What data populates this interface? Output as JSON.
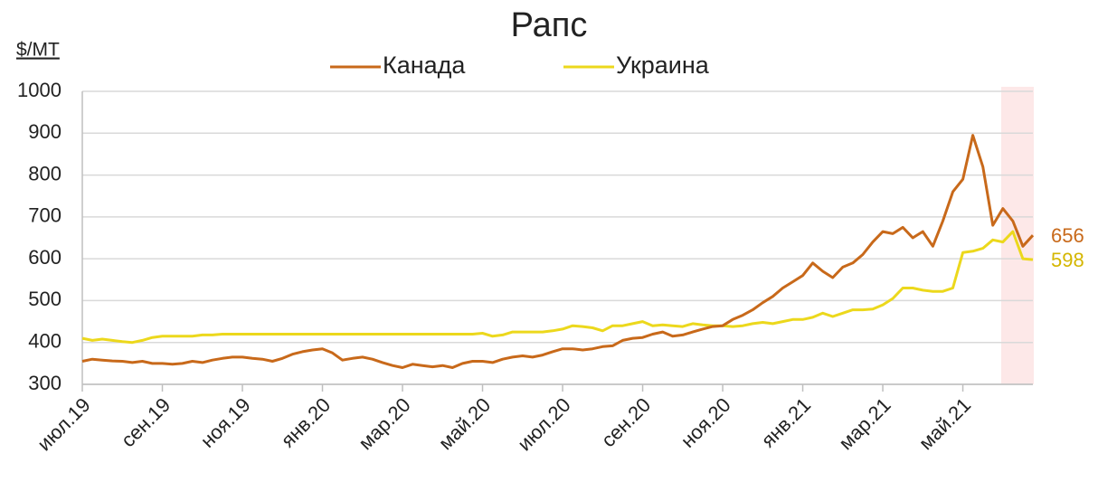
{
  "chart_data": {
    "type": "line",
    "title": "Рапс",
    "y_label": "$/МТ",
    "x": [
      "июл.19",
      null,
      null,
      null,
      null,
      null,
      null,
      null,
      "сен.19",
      null,
      null,
      null,
      null,
      null,
      null,
      null,
      "ноя.19",
      null,
      null,
      null,
      null,
      null,
      null,
      null,
      "янв.20",
      null,
      null,
      null,
      null,
      null,
      null,
      null,
      "мар.20",
      null,
      null,
      null,
      null,
      null,
      null,
      null,
      "май.20",
      null,
      null,
      null,
      null,
      null,
      null,
      null,
      "июл.20",
      null,
      null,
      null,
      null,
      null,
      null,
      null,
      "сен.20",
      null,
      null,
      null,
      null,
      null,
      null,
      null,
      "ноя.20",
      null,
      null,
      null,
      null,
      null,
      null,
      null,
      "янв.21",
      null,
      null,
      null,
      null,
      null,
      null,
      null,
      "мар.21",
      null,
      null,
      null,
      null,
      null,
      null,
      null,
      "май.21",
      null,
      null,
      null,
      null,
      null,
      null,
      null
    ],
    "series": [
      {
        "name": "Канада",
        "color": "#c8691a",
        "values": [
          355,
          360,
          358,
          356,
          355,
          352,
          355,
          350,
          350,
          348,
          350,
          355,
          352,
          358,
          362,
          365,
          365,
          362,
          360,
          355,
          362,
          372,
          378,
          382,
          385,
          375,
          358,
          362,
          365,
          360,
          352,
          345,
          340,
          348,
          345,
          342,
          345,
          340,
          350,
          355,
          355,
          352,
          360,
          365,
          368,
          365,
          370,
          378,
          385,
          385,
          382,
          385,
          390,
          392,
          405,
          410,
          412,
          420,
          425,
          415,
          418,
          425,
          432,
          438,
          440,
          455,
          465,
          478,
          495,
          510,
          530,
          545,
          560,
          590,
          570,
          555,
          580,
          590,
          610,
          640,
          665,
          660,
          675,
          650,
          665,
          630,
          690,
          760,
          790,
          895,
          820,
          680,
          720,
          690,
          630,
          656
        ]
      },
      {
        "name": "Украина",
        "color": "#ecd81c",
        "values": [
          410,
          405,
          408,
          405,
          402,
          400,
          405,
          412,
          415,
          415,
          415,
          415,
          418,
          418,
          420,
          420,
          420,
          420,
          420,
          420,
          420,
          420,
          420,
          420,
          420,
          420,
          420,
          420,
          420,
          420,
          420,
          420,
          420,
          420,
          420,
          420,
          420,
          420,
          420,
          420,
          422,
          415,
          418,
          425,
          425,
          425,
          425,
          428,
          432,
          440,
          438,
          435,
          428,
          440,
          440,
          445,
          450,
          440,
          442,
          440,
          438,
          445,
          442,
          440,
          440,
          438,
          440,
          445,
          448,
          445,
          450,
          455,
          455,
          460,
          470,
          462,
          470,
          478,
          478,
          480,
          490,
          505,
          530,
          530,
          525,
          522,
          522,
          530,
          615,
          618,
          625,
          645,
          640,
          665,
          600,
          598
        ]
      }
    ],
    "ylim": [
      300,
      1000
    ],
    "yticks": [
      300,
      400,
      500,
      600,
      700,
      800,
      900,
      1000
    ],
    "grid": true
  }
}
